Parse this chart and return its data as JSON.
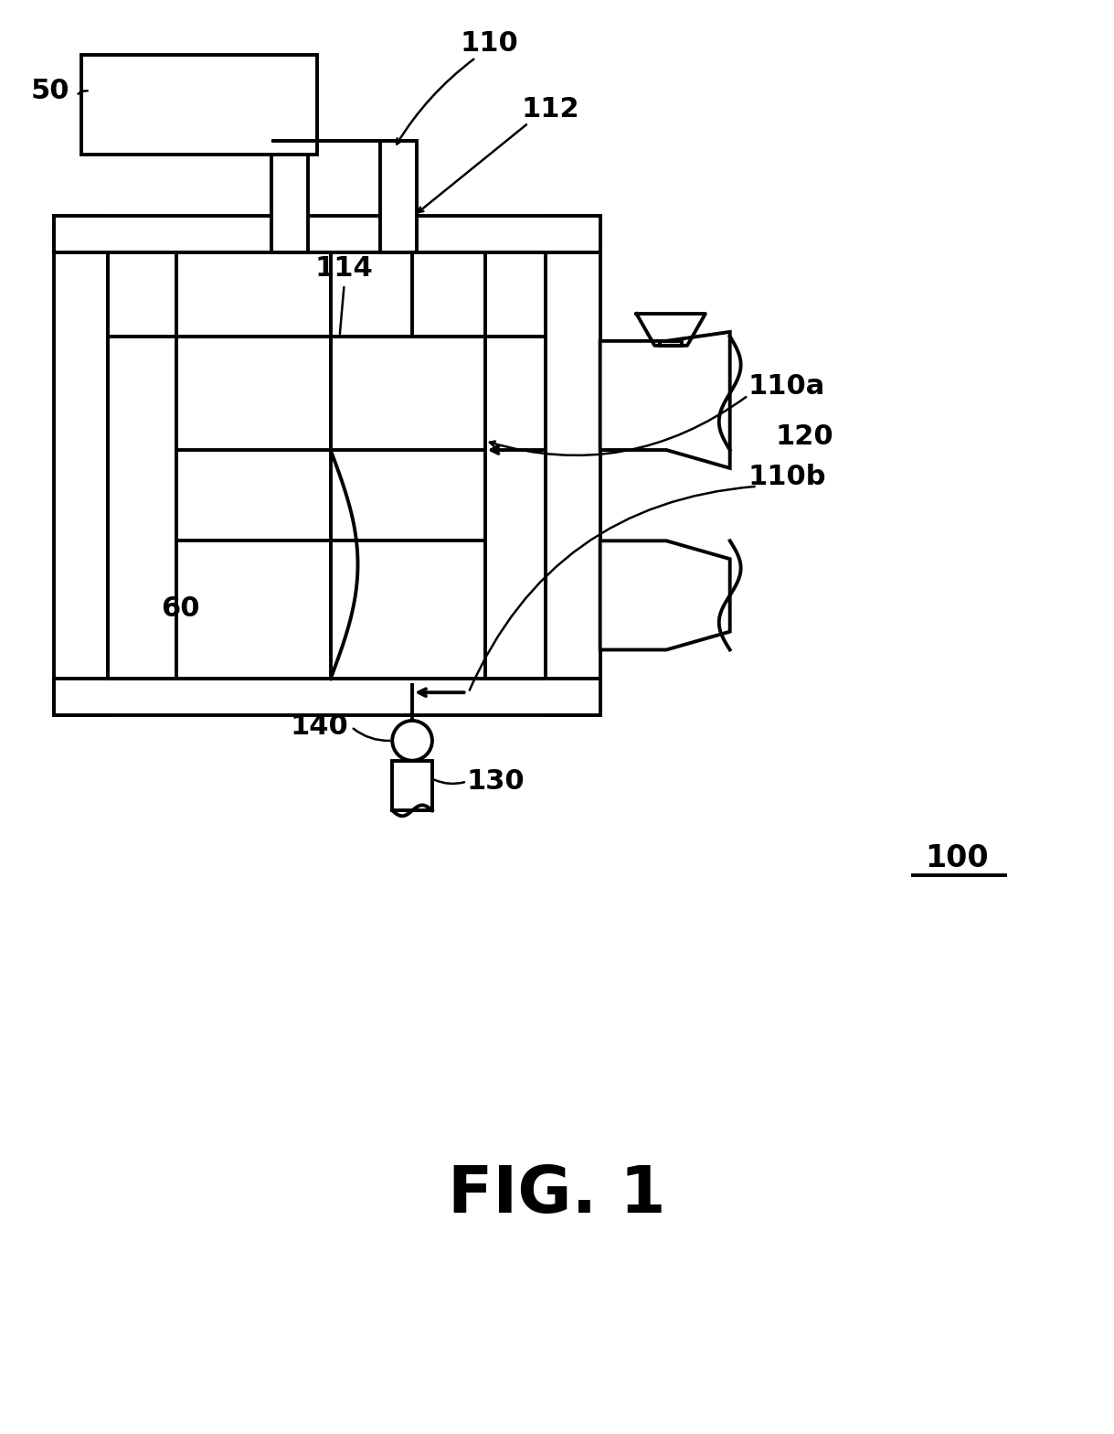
{
  "background_color": "#ffffff",
  "line_color": "#000000",
  "line_width": 2.8,
  "fig_label": "FIG. 1",
  "ref_100": "100"
}
